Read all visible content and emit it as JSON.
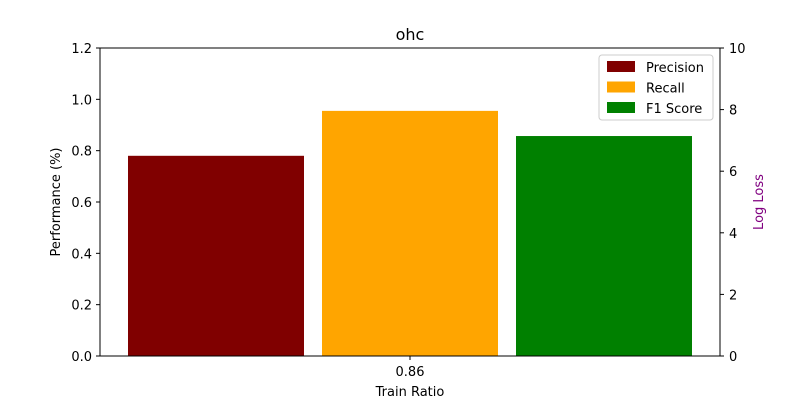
{
  "chart_data": {
    "type": "bar",
    "title": "ohc",
    "xlabel": "Train Ratio",
    "ylabel": "Performance (%)",
    "y2label": "Log Loss",
    "categories": [
      "0.86"
    ],
    "series": [
      {
        "name": "Precision",
        "values": [
          0.78
        ],
        "color": "#800000"
      },
      {
        "name": "Recall",
        "values": [
          0.955
        ],
        "color": "#FFA500"
      },
      {
        "name": "F1 Score",
        "values": [
          0.857
        ],
        "color": "#008000"
      }
    ],
    "ylim": [
      0,
      1.2
    ],
    "yticks": [
      "0.0",
      "0.2",
      "0.4",
      "0.6",
      "0.8",
      "1.0",
      "1.2"
    ],
    "y2lim": [
      0,
      10
    ],
    "y2ticks": [
      "0",
      "2",
      "4",
      "6",
      "8",
      "10"
    ],
    "y2label_color": "#800080",
    "legend_position": "top-right",
    "grid": false
  }
}
